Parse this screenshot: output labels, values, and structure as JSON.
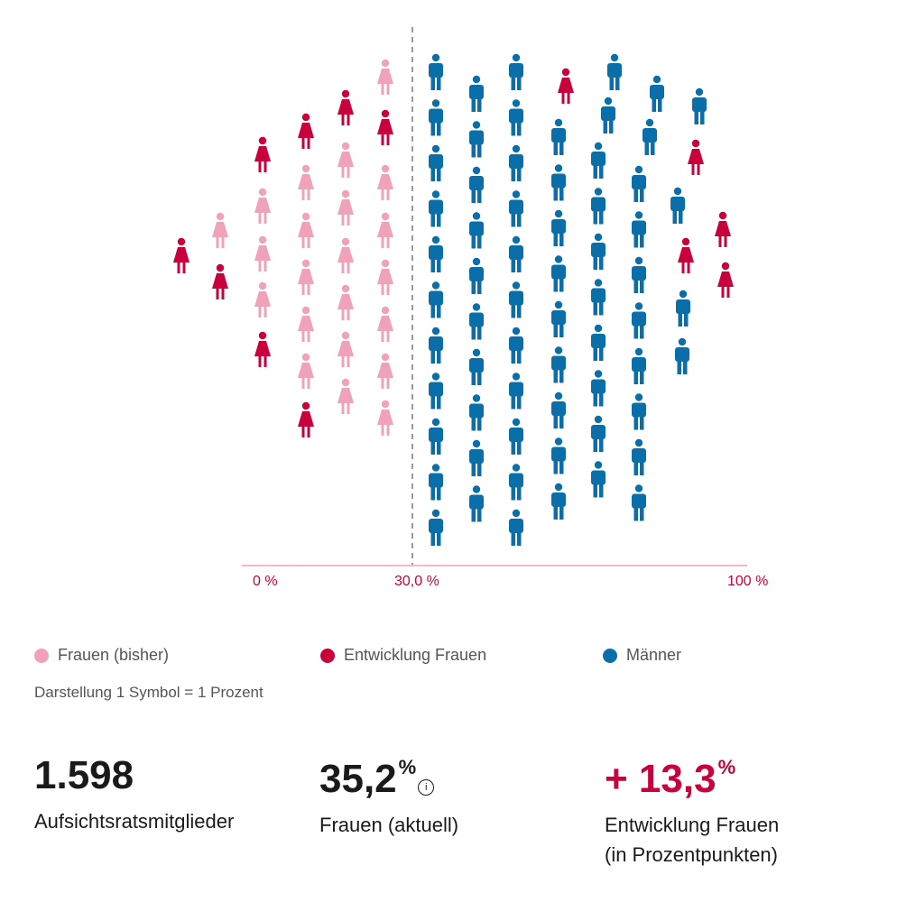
{
  "chart_data": {
    "type": "pictogram",
    "unit_note": "Darstellung 1 Symbol = 1 Prozent",
    "axis_ticks": [
      "0 %",
      "30,0 %",
      "100 %"
    ],
    "series": [
      {
        "name": "Frauen (bisher)",
        "value": 21.9,
        "color": "#f0a3b8"
      },
      {
        "name": "Entwicklung Frauen",
        "value": 13.3,
        "color": "#c8003c"
      },
      {
        "name": "Männer",
        "value": 64.8,
        "color": "#0a6fa8"
      }
    ],
    "reference_line": {
      "label": "30,0 %",
      "value": 30.0
    }
  },
  "legend": {
    "items": [
      {
        "label": "Frauen (bisher)",
        "color": "#f0a3b8"
      },
      {
        "label": "Entwicklung Frauen",
        "color": "#c8003c"
      },
      {
        "label": "Männer",
        "color": "#0a6fa8"
      }
    ]
  },
  "stats": {
    "members": {
      "value": "1.598",
      "label": "Aufsichtsratsmitglieder"
    },
    "women_current": {
      "value": "35,2",
      "unit": "%",
      "info": "i",
      "label": "Frauen (aktuell)"
    },
    "women_change": {
      "value": "+ 13,3",
      "unit": "%",
      "label_line1": "Entwicklung Frauen",
      "label_line2": "(in Prozentpunkten)"
    }
  }
}
